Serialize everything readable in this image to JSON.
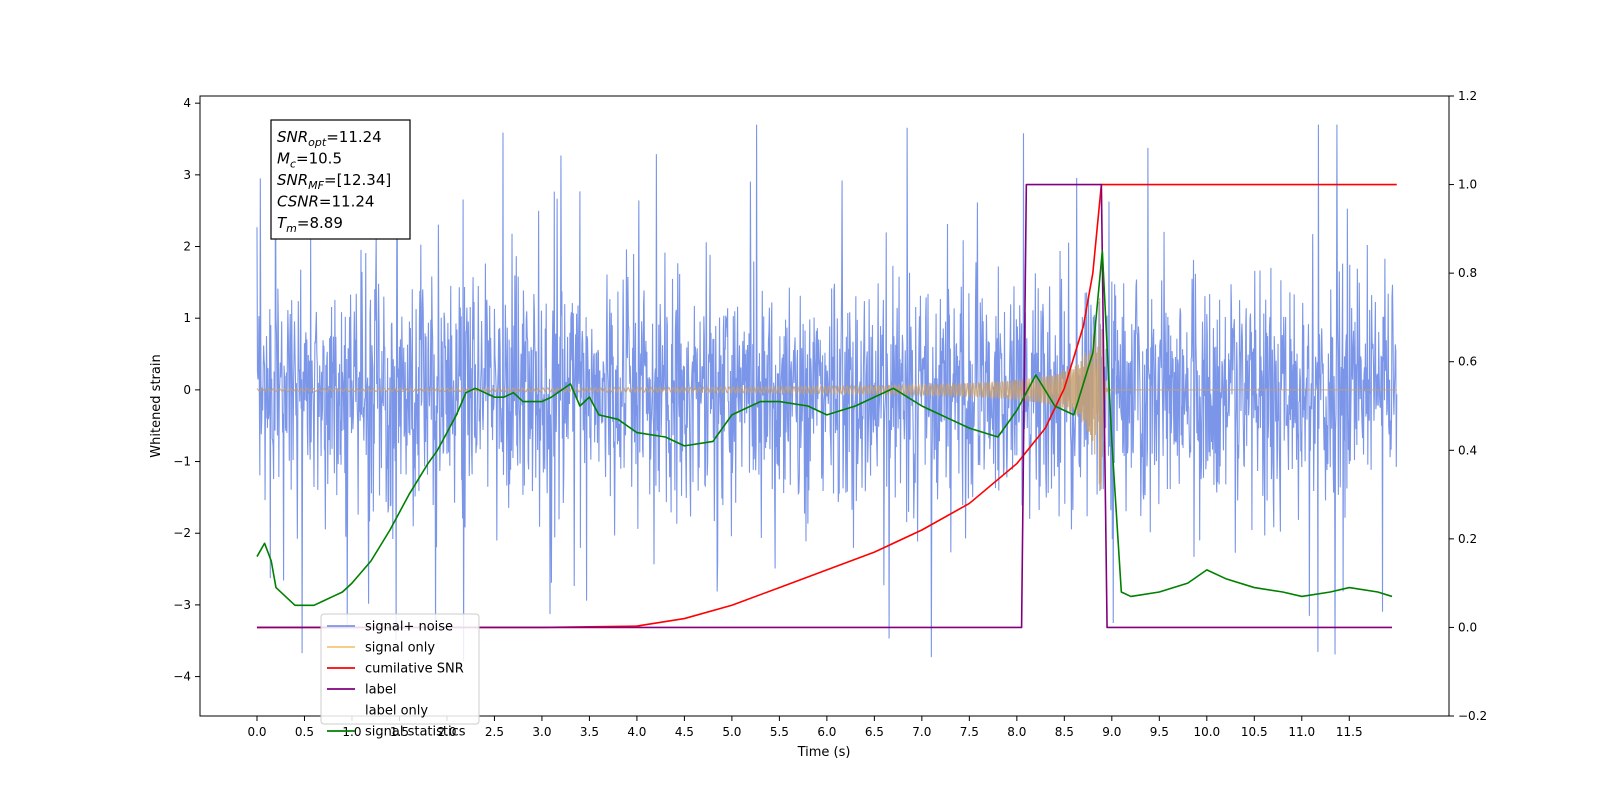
{
  "chart_data": {
    "type": "line",
    "title": "",
    "xlabel": "Time (s)",
    "ylabel": "Whitened strain",
    "y2label": "",
    "xlim": [
      -0.6,
      12.55
    ],
    "ylim": [
      -4.55,
      4.1
    ],
    "y2lim": [
      -0.2,
      1.2
    ],
    "x_ticks": [
      0.0,
      0.5,
      1.0,
      1.5,
      2.0,
      2.5,
      3.0,
      3.5,
      4.0,
      4.5,
      5.0,
      5.5,
      6.0,
      6.5,
      7.0,
      7.5,
      8.0,
      8.5,
      9.0,
      9.5,
      10.0,
      10.5,
      11.0,
      11.5
    ],
    "x_tick_labels": [
      "0.0",
      "0.5",
      "1.0",
      "1.5",
      "2.0",
      "2.5",
      "3.0",
      "3.5",
      "4.0",
      "4.5",
      "5.0",
      "5.5",
      "6.0",
      "6.5",
      "7.0",
      "7.5",
      "8.0",
      "8.5",
      "9.0",
      "9.5",
      "10.0",
      "10.5",
      "11.0",
      "11.5"
    ],
    "y_ticks": [
      4,
      3,
      2,
      1,
      0,
      -1,
      -2,
      -3,
      -4
    ],
    "y_tick_labels": [
      "4",
      "3",
      "2",
      "1",
      "0",
      "−1",
      "−2",
      "−3",
      "−4"
    ],
    "y2_ticks": [
      1.2,
      1.0,
      0.8,
      0.6,
      0.4,
      0.2,
      0.0,
      -0.2
    ],
    "y2_tick_labels": [
      "1.2",
      "1.0",
      "0.8",
      "0.6",
      "0.4",
      "0.2",
      "0.0",
      "−0.2"
    ],
    "annotation": [
      {
        "sym": "SNR",
        "sub": "opt",
        "val": "=11.24"
      },
      {
        "sym": "M",
        "sub": "c",
        "val": "=10.5"
      },
      {
        "sym": "SNR",
        "sub": "MF",
        "val": "=[12.34]"
      },
      {
        "sym": "CSNR",
        "sub": "",
        "val": "=11.24"
      },
      {
        "sym": "T",
        "sub": "m",
        "val": "=8.89"
      }
    ],
    "legend_position": "lower-left",
    "legend": [
      {
        "label": "signal+ noise",
        "color": "#7B96E8"
      },
      {
        "label": "signal only",
        "color": "#F5C57A"
      },
      {
        "label": "cumilative SNR",
        "color": "#FF0000"
      },
      {
        "label": "label",
        "color": "#800080"
      },
      {
        "label": "label only",
        "color": "#ffffff"
      },
      {
        "label": "signal statistics",
        "color": "#008000"
      }
    ],
    "series": [
      {
        "name": "signal+ noise",
        "axis": "left",
        "color": "#7B96E8",
        "noise_band": {
          "x_range": [
            0.0,
            12.0
          ],
          "sigma": 0.75,
          "max": 3.7,
          "min": -4.1
        }
      },
      {
        "name": "signal only",
        "axis": "left",
        "color": "#C8A070",
        "chirp": {
          "start": 0.0,
          "merger": 8.89,
          "end": 12.0,
          "peak_amplitude": 2.0
        }
      },
      {
        "name": "cumilative SNR",
        "axis": "right",
        "color": "#FF0000",
        "x": [
          0.0,
          3.0,
          4.0,
          4.5,
          5.0,
          5.5,
          6.0,
          6.5,
          7.0,
          7.5,
          8.0,
          8.3,
          8.5,
          8.7,
          8.8,
          8.89,
          8.9,
          12.0
        ],
        "y": [
          0.0,
          0.0,
          0.003,
          0.02,
          0.05,
          0.09,
          0.13,
          0.17,
          0.22,
          0.28,
          0.37,
          0.45,
          0.54,
          0.68,
          0.8,
          1.0,
          1.0,
          1.0
        ]
      },
      {
        "name": "label",
        "axis": "right",
        "color": "#800080",
        "x": [
          0.0,
          8.05,
          8.1,
          8.89,
          8.95,
          11.95
        ],
        "y": [
          0.0,
          0.0,
          1.0,
          1.0,
          0.0,
          0.0
        ]
      },
      {
        "name": "signal statistics",
        "axis": "right",
        "color": "#008000",
        "x": [
          0.0,
          0.08,
          0.15,
          0.2,
          0.3,
          0.4,
          0.5,
          0.6,
          0.7,
          0.8,
          0.9,
          1.0,
          1.2,
          1.4,
          1.6,
          1.8,
          1.9,
          2.0,
          2.1,
          2.2,
          2.3,
          2.5,
          2.6,
          2.7,
          2.8,
          3.0,
          3.1,
          3.3,
          3.4,
          3.5,
          3.6,
          3.8,
          4.0,
          4.3,
          4.5,
          4.8,
          5.0,
          5.3,
          5.5,
          5.8,
          6.0,
          6.3,
          6.5,
          6.7,
          7.0,
          7.3,
          7.5,
          7.8,
          8.0,
          8.2,
          8.4,
          8.6,
          8.8,
          8.9,
          9.0,
          9.1,
          9.2,
          9.5,
          9.8,
          10.0,
          10.2,
          10.5,
          10.8,
          11.0,
          11.3,
          11.5,
          11.8,
          11.95
        ],
        "y": [
          0.16,
          0.19,
          0.15,
          0.09,
          0.07,
          0.05,
          0.05,
          0.05,
          0.06,
          0.07,
          0.08,
          0.1,
          0.15,
          0.22,
          0.3,
          0.37,
          0.4,
          0.44,
          0.48,
          0.53,
          0.54,
          0.52,
          0.52,
          0.53,
          0.51,
          0.51,
          0.52,
          0.55,
          0.5,
          0.52,
          0.48,
          0.47,
          0.44,
          0.43,
          0.41,
          0.42,
          0.48,
          0.51,
          0.51,
          0.5,
          0.48,
          0.5,
          0.52,
          0.54,
          0.5,
          0.47,
          0.45,
          0.43,
          0.49,
          0.57,
          0.5,
          0.48,
          0.62,
          0.85,
          0.42,
          0.08,
          0.07,
          0.08,
          0.1,
          0.13,
          0.11,
          0.09,
          0.08,
          0.07,
          0.08,
          0.09,
          0.08,
          0.07
        ]
      }
    ]
  }
}
